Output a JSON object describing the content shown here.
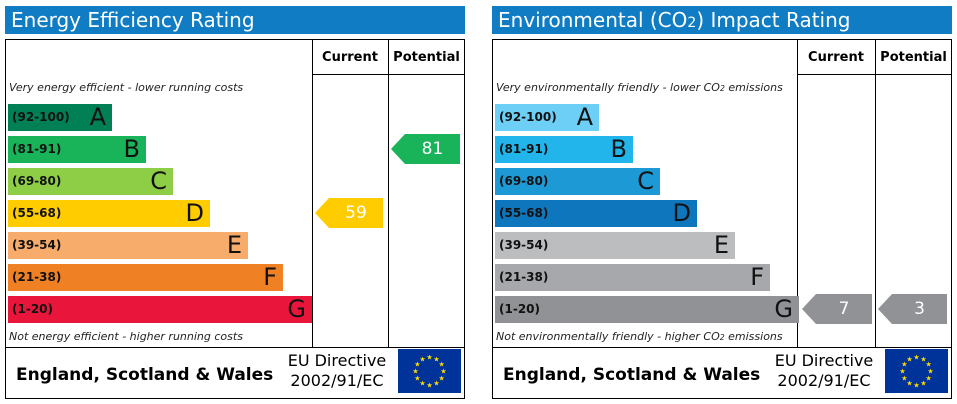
{
  "colors": {
    "title_bar": "#0f7cc3",
    "eu_blue": "#003399",
    "eu_star": "#ffdd00"
  },
  "chart_data": [
    {
      "type": "bar",
      "title": "Energy Efficiency Rating",
      "columns": [
        "Current",
        "Potential"
      ],
      "top_note": "Very energy efficient - lower running costs",
      "bottom_note": "Not energy efficient - higher running costs",
      "bands": [
        {
          "range": "(92-100)",
          "letter": "A",
          "color": "#008054"
        },
        {
          "range": "(81-91)",
          "letter": "B",
          "color": "#19b459"
        },
        {
          "range": "(69-80)",
          "letter": "C",
          "color": "#8dce46"
        },
        {
          "range": "(55-68)",
          "letter": "D",
          "color": "#ffcc00"
        },
        {
          "range": "(39-54)",
          "letter": "E",
          "color": "#f7ac6b"
        },
        {
          "range": "(21-38)",
          "letter": "F",
          "color": "#ef8023"
        },
        {
          "range": "(1-20)",
          "letter": "G",
          "color": "#e9153b"
        }
      ],
      "current": {
        "value": "59",
        "band": "D",
        "color": "#ffcc00"
      },
      "potential": {
        "value": "81",
        "band": "B",
        "color": "#19b459"
      },
      "footer_region": "England, Scotland & Wales",
      "footer_directive_1": "EU Directive",
      "footer_directive_2": "2002/91/EC"
    },
    {
      "type": "bar",
      "title_prefix": "Environmental (CO",
      "title_sub": "2",
      "title_suffix": ") Impact Rating",
      "columns": [
        "Current",
        "Potential"
      ],
      "top_note_prefix": "Very environmentally friendly - lower CO",
      "top_note_sub": "2",
      "top_note_suffix": " emissions",
      "bottom_note_prefix": "Not environmentally friendly - higher CO",
      "bottom_note_sub": "2",
      "bottom_note_suffix": " emissions",
      "bands": [
        {
          "range": "(92-100)",
          "letter": "A",
          "color": "#6ecff6"
        },
        {
          "range": "(81-91)",
          "letter": "B",
          "color": "#22b5eb"
        },
        {
          "range": "(69-80)",
          "letter": "C",
          "color": "#1d9ad6"
        },
        {
          "range": "(55-68)",
          "letter": "D",
          "color": "#0e76bc"
        },
        {
          "range": "(39-54)",
          "letter": "E",
          "color": "#bbbdbf"
        },
        {
          "range": "(21-38)",
          "letter": "F",
          "color": "#a6a8ab"
        },
        {
          "range": "(1-20)",
          "letter": "G",
          "color": "#919295"
        }
      ],
      "current": {
        "value": "7",
        "band": "G",
        "color": "#919295"
      },
      "potential": {
        "value": "3",
        "band": "G",
        "color": "#919295"
      },
      "footer_region": "England, Scotland & Wales",
      "footer_directive_1": "EU Directive",
      "footer_directive_2": "2002/91/EC"
    }
  ]
}
